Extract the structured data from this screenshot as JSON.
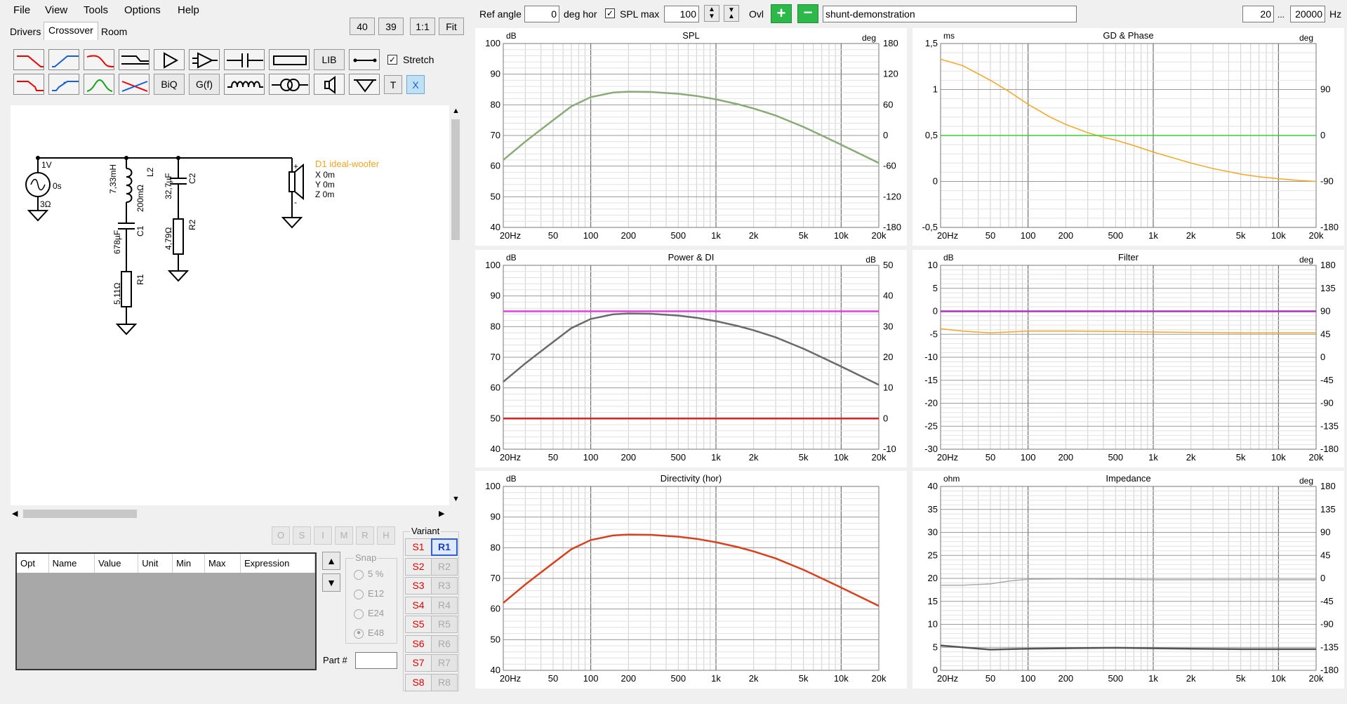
{
  "menu": [
    "File",
    "View",
    "Tools",
    "Options",
    "Help"
  ],
  "tabs": [
    "Drivers",
    "Crossover",
    "Room"
  ],
  "zoom": {
    "a": "40",
    "b": "39",
    "one": "1:1",
    "fit": "Fit"
  },
  "toolbar": {
    "lib": "LIB",
    "biq": "BiQ",
    "gf": "G(f)",
    "t": "T",
    "x": "X",
    "stretch": "Stretch"
  },
  "topbar": {
    "ref_angle_label": "Ref angle",
    "ref_angle": "0",
    "deg_hor": "deg hor",
    "spl_max_label": "SPL max",
    "spl_max": "100",
    "ovl": "Ovl",
    "project": "shunt-demonstration",
    "f_min": "20",
    "ellipsis": "...",
    "f_max": "20000",
    "hz": "Hz"
  },
  "schematic": {
    "source": {
      "v": "1V",
      "t": "0s",
      "r": "3Ω"
    },
    "L2": {
      "name": "L2",
      "value": "7,33mH",
      "r": "200mΩ"
    },
    "C1": {
      "name": "C1",
      "value": "678µF"
    },
    "R1": {
      "name": "R1",
      "value": "5,11Ω"
    },
    "C2": {
      "name": "C2",
      "value": "32,7µF"
    },
    "R2": {
      "name": "R2",
      "value": "4,79Ω"
    },
    "D1": {
      "name": "D1 ideal-woofer",
      "x": "X 0m",
      "y": "Y 0m",
      "z": "Z 0m",
      "plus": "+",
      "minus": "-"
    }
  },
  "oh_buttons": [
    "O",
    "S",
    "I",
    "M",
    "R",
    "H"
  ],
  "params_table": {
    "headers": [
      "Opt",
      "Name",
      "Value",
      "Unit",
      "Min",
      "Max",
      "Expression"
    ]
  },
  "snap": {
    "label": "Snap",
    "options": [
      "5 %",
      "E12",
      "E24",
      "E48"
    ],
    "selected": "E48"
  },
  "part_label": "Part #",
  "variant": {
    "label": "Variant",
    "s": [
      "S1",
      "S2",
      "S3",
      "S4",
      "S5",
      "S6",
      "S7",
      "S8"
    ],
    "r": [
      "R1",
      "R2",
      "R3",
      "R4",
      "R5",
      "R6",
      "R7",
      "R8"
    ],
    "selected": "R1"
  },
  "colors": {
    "spl": "#8aab78",
    "gd": "#f5a623",
    "phase": "#3ccf3c",
    "power": "#6a6a6a",
    "di_ref": "#e040e0",
    "di": "#e02020",
    "dir": "#d8401e",
    "filter_mag": "#b030c0",
    "filter_phase": "#f5a623",
    "imp": "#555555",
    "imp_phase": "#aaaaaa"
  },
  "chart_data": [
    {
      "type": "line",
      "title": "SPL",
      "ylabel": "dB",
      "y2label": "deg",
      "xlim": [
        20,
        20000
      ],
      "xscale": "log",
      "ylim": [
        40,
        100
      ],
      "y2lim": [
        -180,
        180
      ],
      "xticks": [
        "20Hz",
        "50",
        "100",
        "200",
        "500",
        "1k",
        "2k",
        "5k",
        "10k",
        "20k"
      ],
      "yticks": [
        "40",
        "50",
        "60",
        "70",
        "80",
        "90",
        "100"
      ],
      "y2ticks": [
        "-180",
        "-120",
        "-60",
        "0",
        "60",
        "120",
        "180"
      ],
      "series": [
        {
          "axis": "y",
          "color": "#8aab78",
          "x": [
            20,
            30,
            50,
            70,
            100,
            150,
            200,
            300,
            500,
            700,
            1000,
            1500,
            2000,
            3000,
            5000,
            7000,
            10000,
            15000,
            20000
          ],
          "y": [
            62,
            68,
            75,
            79.5,
            82.5,
            84,
            84.3,
            84.2,
            83.6,
            82.9,
            81.8,
            80.2,
            78.8,
            76.5,
            72.8,
            70,
            67,
            63.5,
            61
          ]
        }
      ]
    },
    {
      "type": "line",
      "title": "GD & Phase",
      "ylabel": "ms",
      "y2label": "deg",
      "xlim": [
        20,
        20000
      ],
      "xscale": "log",
      "ylim": [
        -0.5,
        1.5
      ],
      "y2lim": [
        -180,
        180
      ],
      "xticks": [
        "20Hz",
        "50",
        "100",
        "200",
        "500",
        "1k",
        "2k",
        "5k",
        "10k",
        "20k"
      ],
      "yticks": [
        "-0,5",
        "0",
        "0,5",
        "1",
        "1,5"
      ],
      "y2ticks": [
        "-180",
        "-90",
        "0",
        "90"
      ],
      "series": [
        {
          "axis": "y",
          "color": "#f5a623",
          "x": [
            20,
            30,
            50,
            70,
            100,
            150,
            200,
            300,
            400,
            500,
            700,
            1000,
            1500,
            2000,
            3000,
            5000,
            7000,
            10000,
            15000,
            20000
          ],
          "y": [
            1.33,
            1.26,
            1.1,
            0.98,
            0.84,
            0.7,
            0.62,
            0.53,
            0.48,
            0.45,
            0.39,
            0.32,
            0.25,
            0.2,
            0.14,
            0.08,
            0.05,
            0.03,
            0.01,
            0.0
          ]
        },
        {
          "axis": "y",
          "color": "#3ccf3c",
          "x": [
            20,
            20000
          ],
          "y": [
            0.5,
            0.5
          ]
        }
      ]
    },
    {
      "type": "line",
      "title": "Power & DI",
      "ylabel": "dB",
      "y2label": "dB",
      "xlim": [
        20,
        20000
      ],
      "xscale": "log",
      "ylim": [
        40,
        100
      ],
      "y2lim": [
        -10,
        50
      ],
      "xticks": [
        "20Hz",
        "50",
        "100",
        "200",
        "500",
        "1k",
        "2k",
        "5k",
        "10k",
        "20k"
      ],
      "yticks": [
        "40",
        "50",
        "60",
        "70",
        "80",
        "90",
        "100"
      ],
      "y2ticks": [
        "-10",
        "0",
        "10",
        "20",
        "30",
        "40",
        "50"
      ],
      "series": [
        {
          "axis": "y",
          "color": "#6a6a6a",
          "x": [
            20,
            30,
            50,
            70,
            100,
            150,
            200,
            300,
            500,
            700,
            1000,
            1500,
            2000,
            3000,
            5000,
            7000,
            10000,
            15000,
            20000
          ],
          "y": [
            62,
            68,
            75,
            79.5,
            82.5,
            84,
            84.3,
            84.2,
            83.6,
            82.9,
            81.8,
            80.2,
            78.8,
            76.5,
            72.8,
            70,
            67,
            63.5,
            61
          ]
        },
        {
          "axis": "y",
          "color": "#e040e0",
          "x": [
            20,
            20000
          ],
          "y": [
            85,
            85
          ]
        },
        {
          "axis": "y",
          "color": "#e02020",
          "x": [
            20,
            20000
          ],
          "y": [
            50,
            50
          ]
        }
      ]
    },
    {
      "type": "line",
      "title": "Filter",
      "ylabel": "dB",
      "y2label": "deg",
      "xlim": [
        20,
        20000
      ],
      "xscale": "log",
      "ylim": [
        -30,
        10
      ],
      "y2lim": [
        -180,
        180
      ],
      "xticks": [
        "20Hz",
        "50",
        "100",
        "200",
        "500",
        "1k",
        "2k",
        "5k",
        "10k",
        "20k"
      ],
      "yticks": [
        "-30",
        "-25",
        "-20",
        "-15",
        "-10",
        "-5",
        "0",
        "5",
        "10"
      ],
      "y2ticks": [
        "-180",
        "-135",
        "-90",
        "-45",
        "0",
        "45",
        "90",
        "135",
        "180"
      ],
      "series": [
        {
          "axis": "y",
          "color": "#b030c0",
          "x": [
            20,
            20000
          ],
          "y": [
            0,
            0
          ]
        },
        {
          "axis": "y",
          "color": "#f5a623",
          "x": [
            20,
            30,
            50,
            70,
            100,
            200,
            500,
            1000,
            2000,
            5000,
            10000,
            20000
          ],
          "y": [
            -3.8,
            -4.3,
            -4.7,
            -4.5,
            -4.3,
            -4.3,
            -4.4,
            -4.5,
            -4.6,
            -4.7,
            -4.7,
            -4.7
          ]
        }
      ]
    },
    {
      "type": "line",
      "title": "Directivity (hor)",
      "ylabel": "dB",
      "xlim": [
        20,
        20000
      ],
      "xscale": "log",
      "ylim": [
        40,
        100
      ],
      "xticks": [
        "20Hz",
        "50",
        "100",
        "200",
        "500",
        "1k",
        "2k",
        "5k",
        "10k",
        "20k"
      ],
      "yticks": [
        "40",
        "50",
        "60",
        "70",
        "80",
        "90",
        "100"
      ],
      "series": [
        {
          "axis": "y",
          "color": "#d8401e",
          "x": [
            20,
            30,
            50,
            70,
            100,
            150,
            200,
            300,
            500,
            700,
            1000,
            1500,
            2000,
            3000,
            5000,
            7000,
            10000,
            15000,
            20000
          ],
          "y": [
            62,
            68,
            75,
            79.5,
            82.5,
            84,
            84.3,
            84.2,
            83.6,
            82.9,
            81.8,
            80.2,
            78.8,
            76.5,
            72.8,
            70,
            67,
            63.5,
            61
          ]
        }
      ]
    },
    {
      "type": "line",
      "title": "Impedance",
      "ylabel": "ohm",
      "y2label": "deg",
      "xlim": [
        20,
        20000
      ],
      "xscale": "log",
      "ylim": [
        0,
        40
      ],
      "y2lim": [
        -180,
        180
      ],
      "xticks": [
        "20Hz",
        "50",
        "100",
        "200",
        "500",
        "1k",
        "2k",
        "5k",
        "10k",
        "20k"
      ],
      "yticks": [
        "0",
        "5",
        "10",
        "15",
        "20",
        "25",
        "30",
        "35",
        "40"
      ],
      "y2ticks": [
        "-180",
        "-135",
        "-90",
        "-45",
        "0",
        "45",
        "90",
        "135",
        "180"
      ],
      "series": [
        {
          "axis": "y",
          "color": "#555555",
          "x": [
            20,
            30,
            50,
            70,
            100,
            200,
            500,
            1000,
            2000,
            5000,
            10000,
            20000
          ],
          "y": [
            5.4,
            5.0,
            4.5,
            4.6,
            4.7,
            4.8,
            4.9,
            4.8,
            4.7,
            4.6,
            4.6,
            4.6
          ]
        },
        {
          "axis": "y",
          "color": "#aaaaaa",
          "x": [
            20,
            30,
            50,
            70,
            100,
            200,
            500,
            1000,
            2000,
            5000,
            10000,
            20000
          ],
          "y": [
            18.5,
            18.5,
            18.8,
            19.4,
            19.8,
            19.9,
            19.8,
            19.7,
            19.7,
            19.7,
            19.7,
            19.7
          ]
        }
      ]
    }
  ]
}
